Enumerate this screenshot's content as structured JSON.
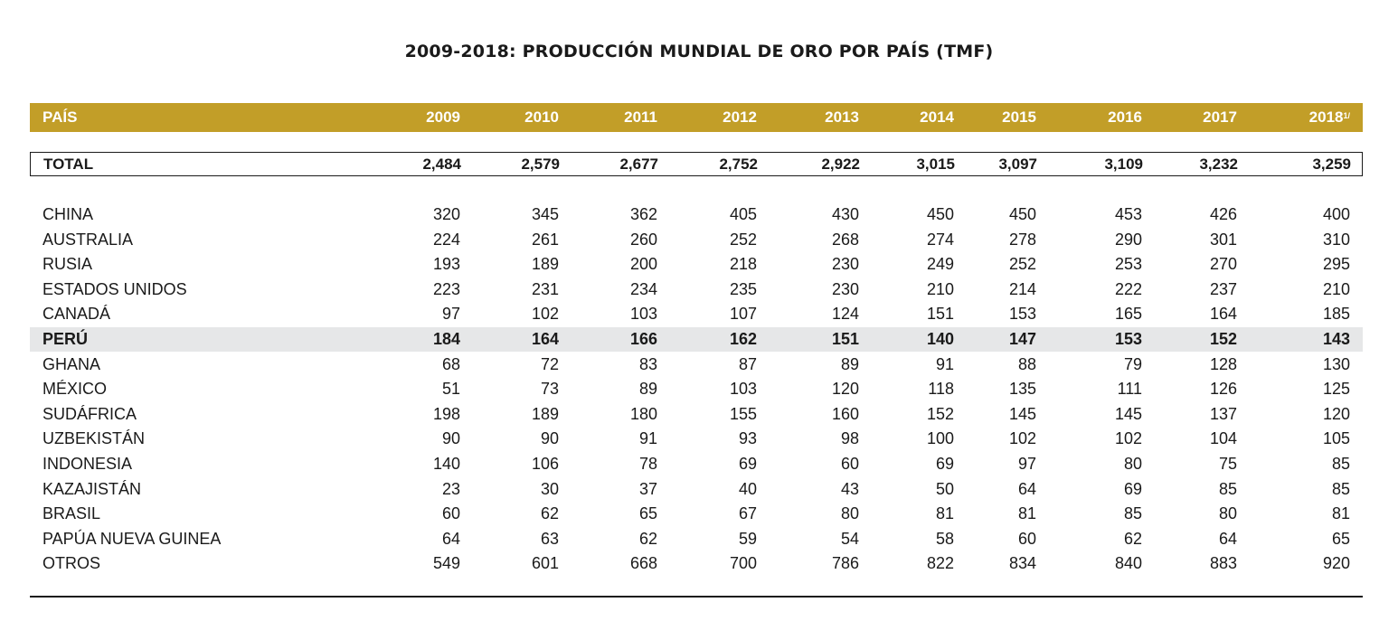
{
  "title": "2009-2018: PRODUCCIÓN MUNDIAL DE ORO POR PAÍS (TMF)",
  "header": {
    "country_label": "PAÍS",
    "years": [
      "2009",
      "2010",
      "2011",
      "2012",
      "2013",
      "2014",
      "2015",
      "2016",
      "2017",
      "2018"
    ],
    "last_year_note": "1/"
  },
  "total": {
    "label": "TOTAL",
    "values": [
      "2,484",
      "2,579",
      "2,677",
      "2,752",
      "2,922",
      "3,015",
      "3,097",
      "3,109",
      "3,232",
      "3,259"
    ]
  },
  "rows": [
    {
      "country": "CHINA",
      "values": [
        "320",
        "345",
        "362",
        "405",
        "430",
        "450",
        "450",
        "453",
        "426",
        "400"
      ]
    },
    {
      "country": "AUSTRALIA",
      "values": [
        "224",
        "261",
        "260",
        "252",
        "268",
        "274",
        "278",
        "290",
        "301",
        "310"
      ]
    },
    {
      "country": "RUSIA",
      "values": [
        "193",
        "189",
        "200",
        "218",
        "230",
        "249",
        "252",
        "253",
        "270",
        "295"
      ]
    },
    {
      "country": "ESTADOS UNIDOS",
      "values": [
        "223",
        "231",
        "234",
        "235",
        "230",
        "210",
        "214",
        "222",
        "237",
        "210"
      ]
    },
    {
      "country": "CANADÁ",
      "values": [
        "97",
        "102",
        "103",
        "107",
        "124",
        "151",
        "153",
        "165",
        "164",
        "185"
      ]
    },
    {
      "country": "PERÚ",
      "values": [
        "184",
        "164",
        "166",
        "162",
        "151",
        "140",
        "147",
        "153",
        "152",
        "143"
      ],
      "highlight": true
    },
    {
      "country": "GHANA",
      "values": [
        "68",
        "72",
        "83",
        "87",
        "89",
        "91",
        "88",
        "79",
        "128",
        "130"
      ]
    },
    {
      "country": "MÉXICO",
      "values": [
        "51",
        "73",
        "89",
        "103",
        "120",
        "118",
        "135",
        "111",
        "126",
        "125"
      ]
    },
    {
      "country": "SUDÁFRICA",
      "values": [
        "198",
        "189",
        "180",
        "155",
        "160",
        "152",
        "145",
        "145",
        "137",
        "120"
      ]
    },
    {
      "country": "UZBEKISTÁN",
      "values": [
        "90",
        "90",
        "91",
        "93",
        "98",
        "100",
        "102",
        "102",
        "104",
        "105"
      ]
    },
    {
      "country": "INDONESIA",
      "values": [
        "140",
        "106",
        "78",
        "69",
        "60",
        "69",
        "97",
        "80",
        "75",
        "85"
      ]
    },
    {
      "country": "KAZAJISTÁN",
      "values": [
        "23",
        "30",
        "37",
        "40",
        "43",
        "50",
        "64",
        "69",
        "85",
        "85"
      ]
    },
    {
      "country": "BRASIL",
      "values": [
        "60",
        "62",
        "65",
        "67",
        "80",
        "81",
        "81",
        "85",
        "80",
        "81"
      ]
    },
    {
      "country": "PAPÚA NUEVA GUINEA",
      "values": [
        "64",
        "63",
        "62",
        "59",
        "54",
        "58",
        "60",
        "62",
        "64",
        "65"
      ]
    },
    {
      "country": "OTROS",
      "values": [
        "549",
        "601",
        "668",
        "700",
        "786",
        "822",
        "834",
        "840",
        "883",
        "920"
      ]
    }
  ]
}
